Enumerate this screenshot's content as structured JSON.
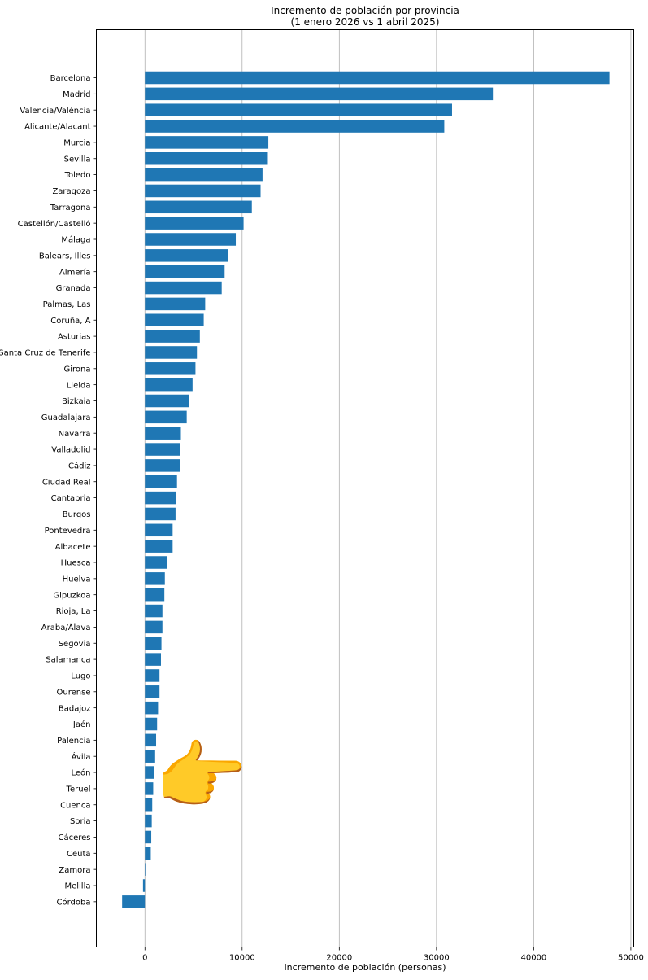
{
  "chart_data": {
    "type": "bar",
    "orientation": "horizontal",
    "title_line1": "Incremento de población por provincia",
    "title_line2": "(1 enero 2026 vs 1 abril 2025)",
    "xlabel": "Incremento de población (personas)",
    "ylabel": "",
    "xlim": [
      -5000,
      50300
    ],
    "xticks": [
      0,
      10000,
      20000,
      30000,
      40000,
      50000
    ],
    "grid": "vertical",
    "bar_color": "#1f77b4",
    "categories": [
      "Barcelona",
      "Madrid",
      "Valencia/València",
      "Alicante/Alacant",
      "Murcia",
      "Sevilla",
      "Toledo",
      "Zaragoza",
      "Tarragona",
      "Castellón/Castelló",
      "Málaga",
      "Balears, Illes",
      "Almería",
      "Granada",
      "Palmas, Las",
      "Coruña, A",
      "Asturias",
      "Santa Cruz de Tenerife",
      "Girona",
      "Lleida",
      "Bizkaia",
      "Guadalajara",
      "Navarra",
      "Valladolid",
      "Cádiz",
      "Ciudad Real",
      "Cantabria",
      "Burgos",
      "Pontevedra",
      "Albacete",
      "Huesca",
      "Huelva",
      "Gipuzkoa",
      "Rioja, La",
      "Araba/Álava",
      "Segovia",
      "Salamanca",
      "Lugo",
      "Ourense",
      "Badajoz",
      "Jaén",
      "Palencia",
      "Ávila",
      "León",
      "Teruel",
      "Cuenca",
      "Soria",
      "Cáceres",
      "Ceuta",
      "Zamora",
      "Melilla",
      "Córdoba"
    ],
    "values": [
      47800,
      35800,
      31600,
      30800,
      12700,
      12650,
      12100,
      11900,
      11000,
      10150,
      9350,
      8550,
      8200,
      7900,
      6200,
      6050,
      5650,
      5350,
      5200,
      4900,
      4550,
      4300,
      3700,
      3650,
      3650,
      3300,
      3200,
      3150,
      2850,
      2850,
      2250,
      2050,
      2000,
      1800,
      1800,
      1700,
      1650,
      1500,
      1500,
      1350,
      1250,
      1150,
      1050,
      950,
      850,
      750,
      700,
      650,
      600,
      50,
      -200,
      -2350
    ]
  },
  "annotation": {
    "pointer_emoji": "👉"
  }
}
